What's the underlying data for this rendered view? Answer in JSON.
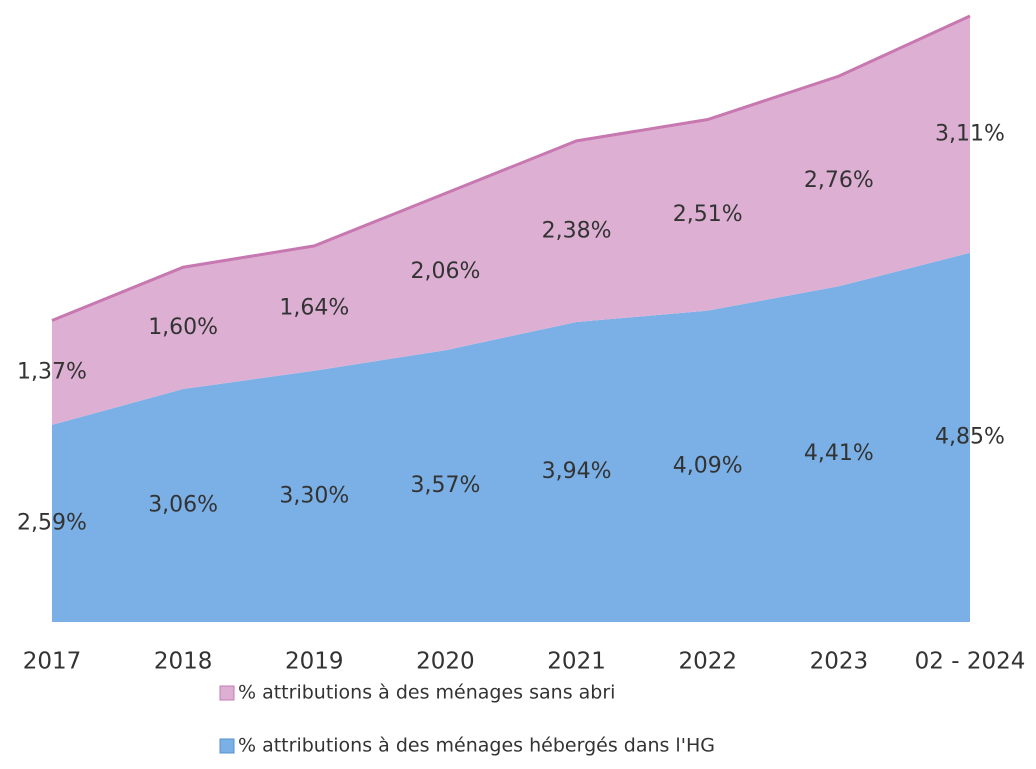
{
  "chart_data": {
    "type": "area",
    "stacked": true,
    "categories": [
      "2017",
      "2018",
      "2019",
      "2020",
      "2021",
      "2022",
      "2023",
      "02 - 2024"
    ],
    "series": [
      {
        "name": "% attributions à des ménages hébergés dans l'HG",
        "color": "#7ab0e6",
        "values": [
          2.59,
          3.06,
          3.3,
          3.57,
          3.94,
          4.09,
          4.41,
          4.85
        ],
        "value_labels": [
          "2,59%",
          "3,06%",
          "3,30%",
          "3,57%",
          "3,94%",
          "4,09%",
          "4,41%",
          "4,85%"
        ]
      },
      {
        "name": "% attributions à des ménages sans abri",
        "color": "#ddb0d3",
        "values": [
          1.37,
          1.6,
          1.64,
          2.06,
          2.38,
          2.51,
          2.76,
          3.11
        ],
        "value_labels": [
          "1,37%",
          "1,60%",
          "1,64%",
          "2,06%",
          "2,38%",
          "2,51%",
          "2,76%",
          "3,11%"
        ]
      }
    ]
  }
}
